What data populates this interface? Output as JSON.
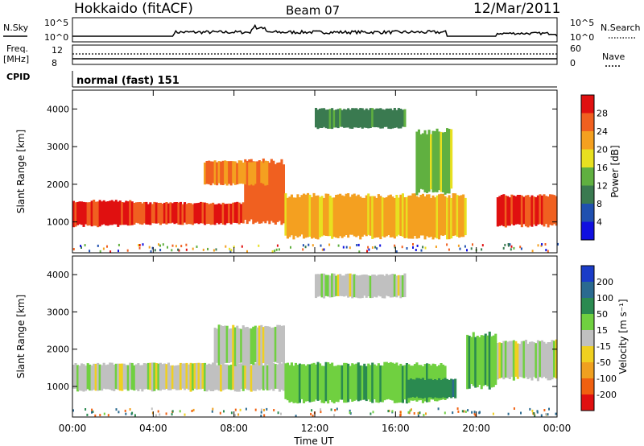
{
  "header": {
    "site": "Hokkaido (fitACF)",
    "beam": "Beam 07",
    "date": "12/Mar/2011"
  },
  "strips": {
    "nsky_label": "N.Sky",
    "nsearch_label": "N.Search",
    "nsky_ticks": [
      "10^5",
      "10^0"
    ],
    "freq_label_line1": "Freq.",
    "freq_label_line2": "[MHz]",
    "freq_ticks": [
      "12",
      "8"
    ],
    "nave_label": "Nave",
    "nave_ticks": [
      "60",
      "0"
    ],
    "cpid_label": "CPID",
    "cpid_text": "normal (fast) 151"
  },
  "axes": {
    "time_ticks": [
      "00:00",
      "04:00",
      "08:00",
      "12:00",
      "16:00",
      "20:00",
      "00:00"
    ],
    "range_ticks": [
      "1000",
      "2000",
      "3000",
      "4000"
    ],
    "ylabel": "Slant Range [km]",
    "xlabel": "Time UT"
  },
  "colorbars": {
    "power": {
      "title": "Power [dB]",
      "ticks": [
        "4",
        "8",
        "12",
        "16",
        "20",
        "24",
        "28"
      ],
      "colors": [
        "#1010e0",
        "#2050b0",
        "#3a7a50",
        "#60b040",
        "#e8e020",
        "#f4a020",
        "#f06020",
        "#e01010"
      ]
    },
    "velocity": {
      "title": "Velocity [m s⁻¹]",
      "ticks": [
        "200",
        "100",
        "50",
        "15",
        "-15",
        "-50",
        "-100",
        "-200"
      ],
      "colors": [
        "#1a3cc8",
        "#2a6a90",
        "#2a8a50",
        "#70d040",
        "#c0c0c0",
        "#f0d020",
        "#f0a020",
        "#f06010",
        "#e01010"
      ]
    }
  },
  "chart_data": [
    {
      "type": "heatmap",
      "title": "Power",
      "xlabel": "Time UT",
      "ylabel": "Slant Range [km]",
      "xlim": [
        0,
        24
      ],
      "ylim": [
        180,
        4500
      ],
      "colorbar_label": "Power [dB]",
      "colorbar_range": [
        0,
        30
      ],
      "regions": [
        {
          "t": [
            0.0,
            3.0
          ],
          "r": [
            900,
            1550
          ],
          "value": 27
        },
        {
          "t": [
            3.0,
            8.5
          ],
          "r": [
            950,
            1500
          ],
          "value": 26
        },
        {
          "t": [
            8.5,
            10.5
          ],
          "r": [
            1000,
            2600
          ],
          "value": 25
        },
        {
          "t": [
            6.5,
            10.0
          ],
          "r": [
            2000,
            2600
          ],
          "value": 22
        },
        {
          "t": [
            10.5,
            19.5
          ],
          "r": [
            600,
            1700
          ],
          "value": 20
        },
        {
          "t": [
            12.0,
            16.5
          ],
          "r": [
            3500,
            4000
          ],
          "value": 10
        },
        {
          "t": [
            21.0,
            24.0
          ],
          "r": [
            900,
            1700
          ],
          "value": 26
        },
        {
          "t": [
            17.0,
            18.8
          ],
          "r": [
            1800,
            3400
          ],
          "value": 14
        }
      ]
    },
    {
      "type": "heatmap",
      "title": "Velocity",
      "xlabel": "Time UT",
      "ylabel": "Slant Range [km]",
      "xlim": [
        0,
        24
      ],
      "ylim": [
        180,
        4500
      ],
      "colorbar_label": "Velocity [m s⁻¹]",
      "colorbar_range": [
        -200,
        200
      ],
      "regions": [
        {
          "t": [
            0.0,
            10.5
          ],
          "r": [
            900,
            1600
          ],
          "value": 0
        },
        {
          "t": [
            7.0,
            10.5
          ],
          "r": [
            1600,
            2600
          ],
          "value": 0
        },
        {
          "t": [
            10.5,
            18.5
          ],
          "r": [
            600,
            1600
          ],
          "value": 40
        },
        {
          "t": [
            16.5,
            19.0
          ],
          "r": [
            700,
            1200
          ],
          "value": 80
        },
        {
          "t": [
            20.5,
            24.0
          ],
          "r": [
            1200,
            2200
          ],
          "value": 0
        },
        {
          "t": [
            12.0,
            16.5
          ],
          "r": [
            3400,
            4000
          ],
          "value": 0
        },
        {
          "t": [
            19.5,
            21.0
          ],
          "r": [
            1000,
            2400
          ],
          "value": 40
        }
      ]
    }
  ]
}
